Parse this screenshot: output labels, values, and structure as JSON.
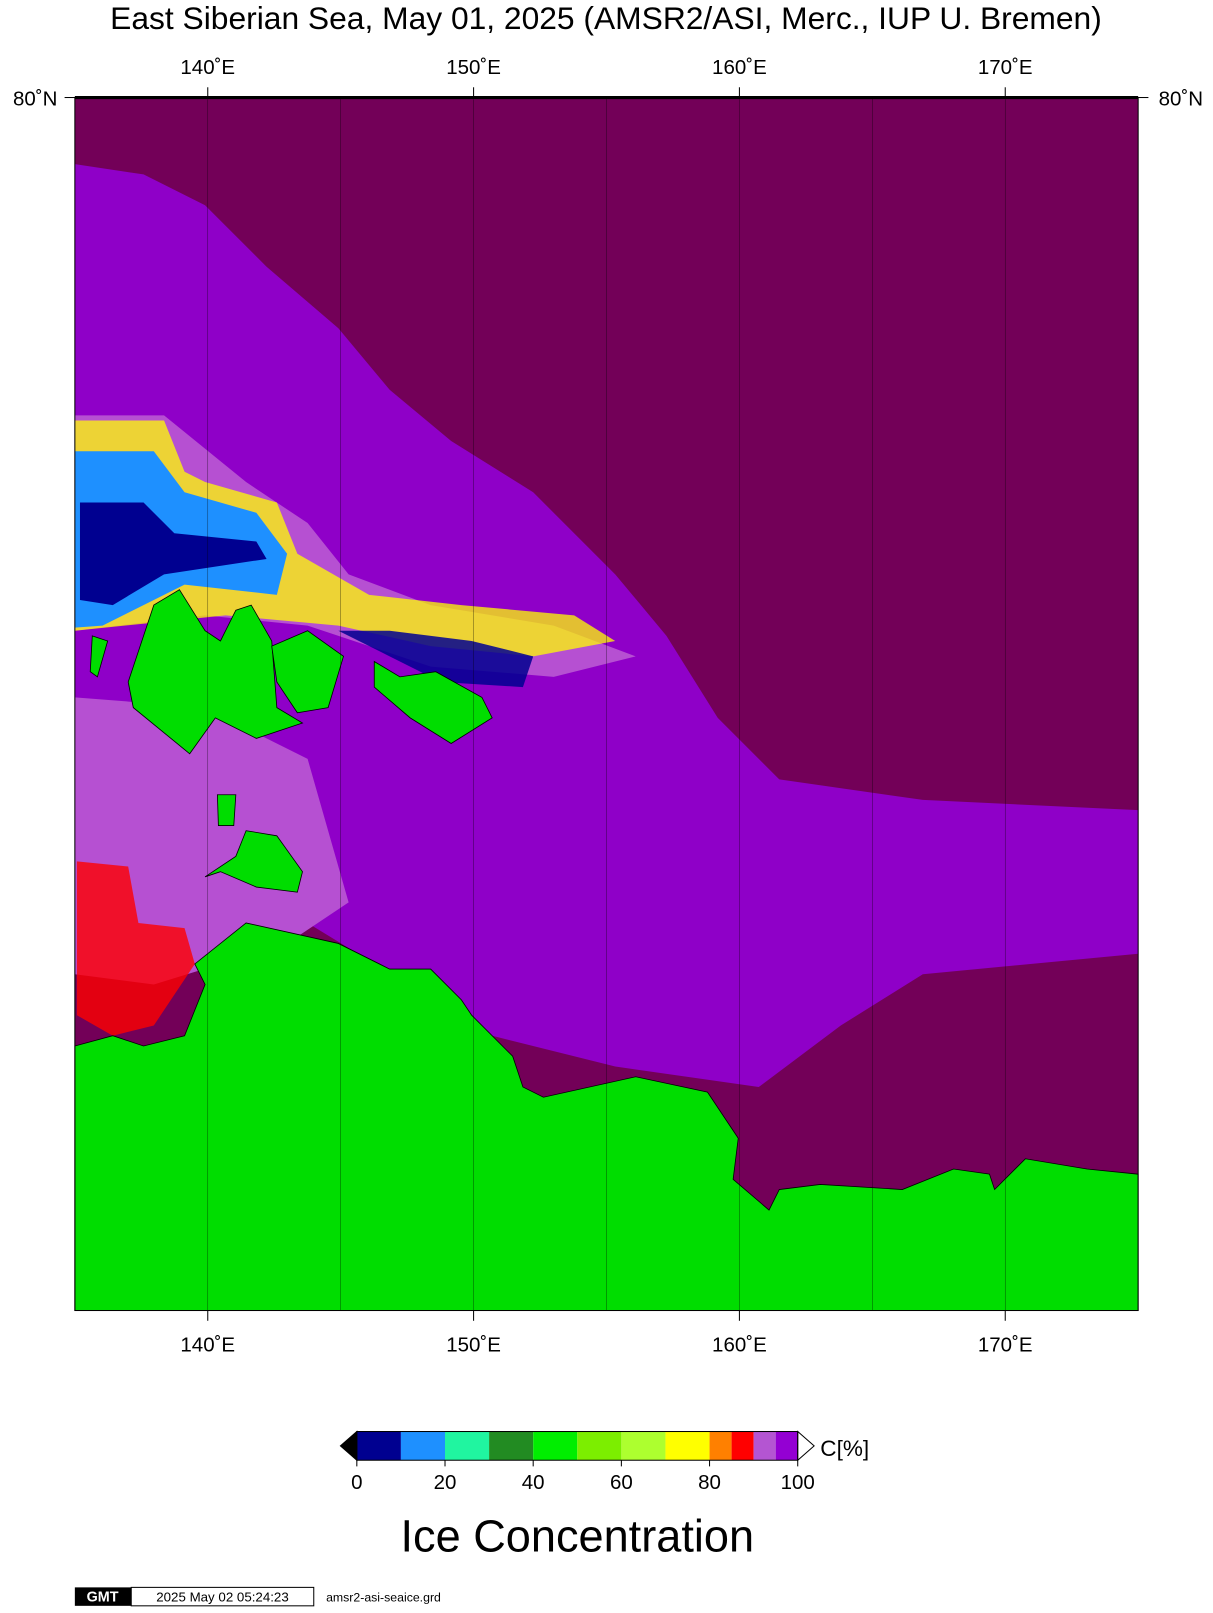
{
  "title": "East Siberian Sea, May 01, 2025 (AMSR2/ASI, Merc., IUP U. Bremen)",
  "map": {
    "xlim": [
      135,
      175
    ],
    "xticks": [
      {
        "value": 140,
        "label": "140˚E"
      },
      {
        "value": 150,
        "label": "150˚E"
      },
      {
        "value": 160,
        "label": "160˚E"
      },
      {
        "value": 170,
        "label": "170˚E"
      }
    ],
    "gridlines": [
      140,
      145,
      150,
      155,
      160,
      165,
      170
    ],
    "yticks": [
      {
        "value": 80,
        "label": "80˚N"
      }
    ],
    "ocean_color": "#730058",
    "land_color": "#00dd00"
  },
  "colorbar": {
    "label": "C[%]",
    "title": "Ice Concentration",
    "bounds": [
      0,
      10,
      20,
      30,
      40,
      50,
      60,
      70,
      80,
      85,
      90,
      95,
      100
    ],
    "colors": [
      "#000090",
      "#1e90ff",
      "#20f5a0",
      "#228b22",
      "#00ee00",
      "#7cee00",
      "#adff2f",
      "#ffff00",
      "#ff8000",
      "#ff0000",
      "#b455d2",
      "#9400d3"
    ],
    "ticks": [
      0,
      20,
      40,
      60,
      80,
      100
    ],
    "below_color": "#000000",
    "above_color": "#ffffff"
  },
  "footer": {
    "logo": "GMT",
    "timestamp": "2025 May 02 05:24:23",
    "file": "amsr2-asi-seaice.grd"
  }
}
